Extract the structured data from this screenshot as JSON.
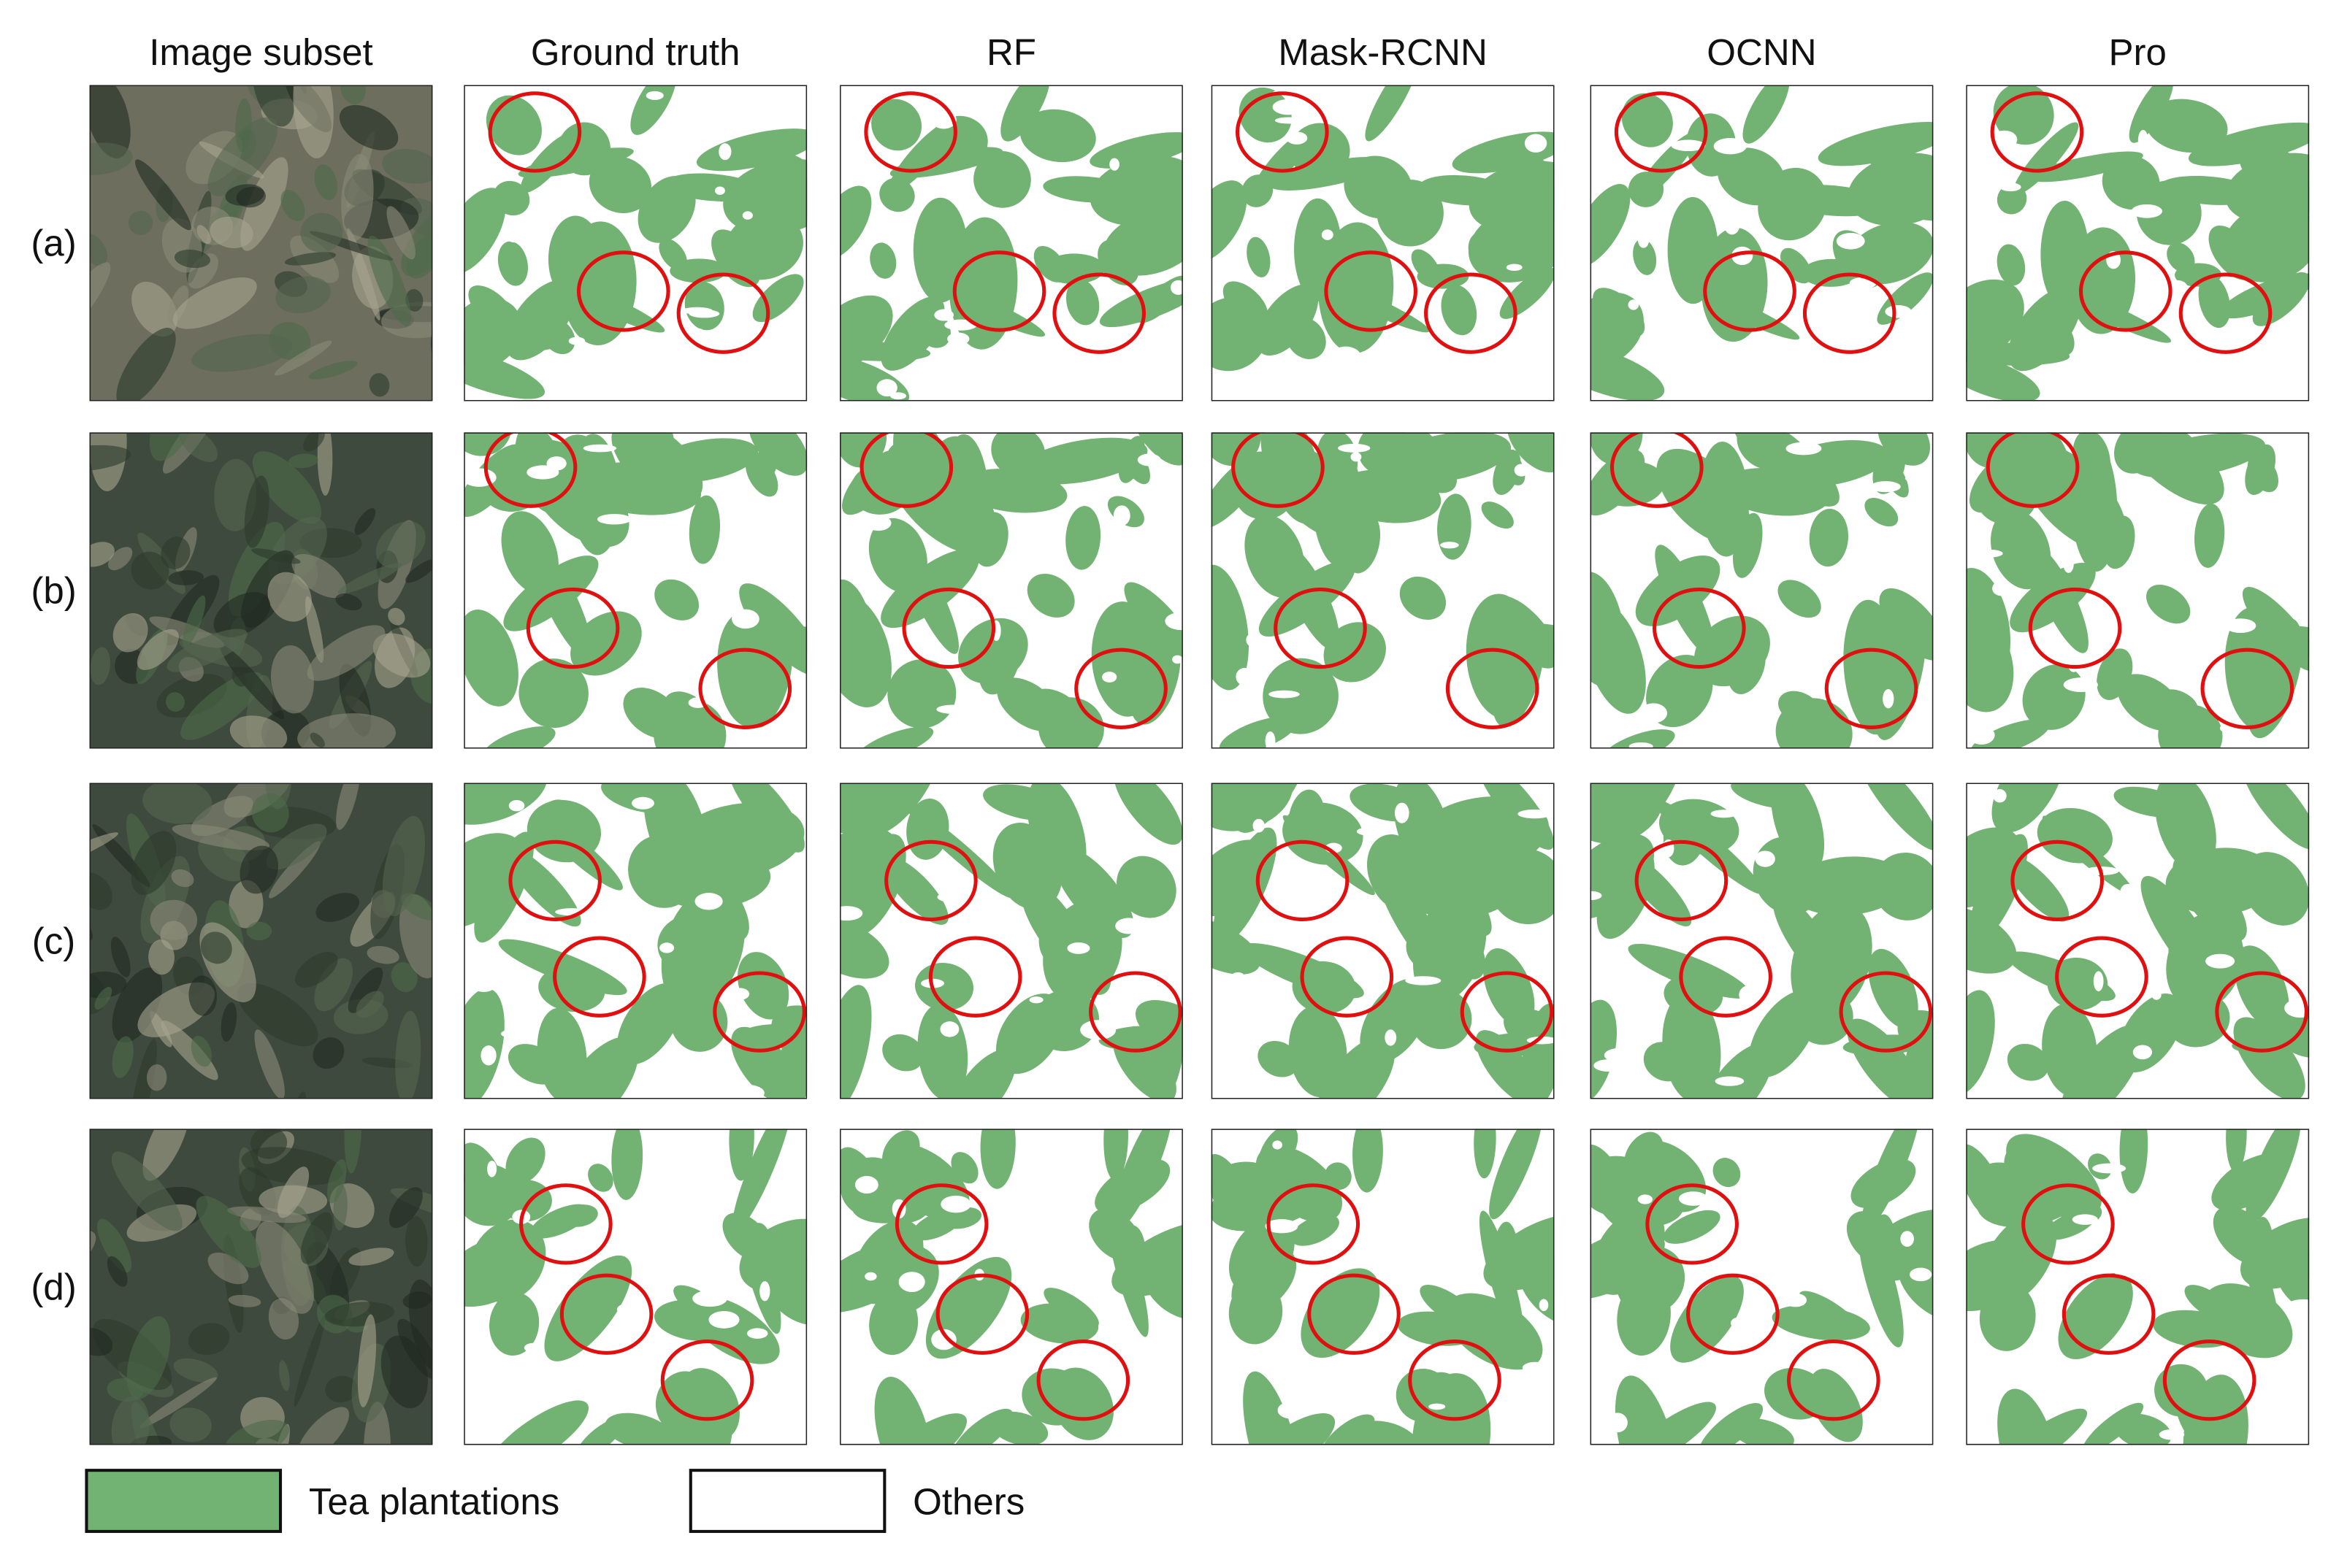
{
  "column_headers": [
    "Image subset",
    "Ground truth",
    "RF",
    "Mask-RCNN",
    "OCNN",
    "Pro"
  ],
  "row_labels": [
    "(a)",
    "(b)",
    "(c)",
    "(d)"
  ],
  "legend": [
    {
      "label": "Tea plantations"
    },
    {
      "label": "Others"
    }
  ]
}
